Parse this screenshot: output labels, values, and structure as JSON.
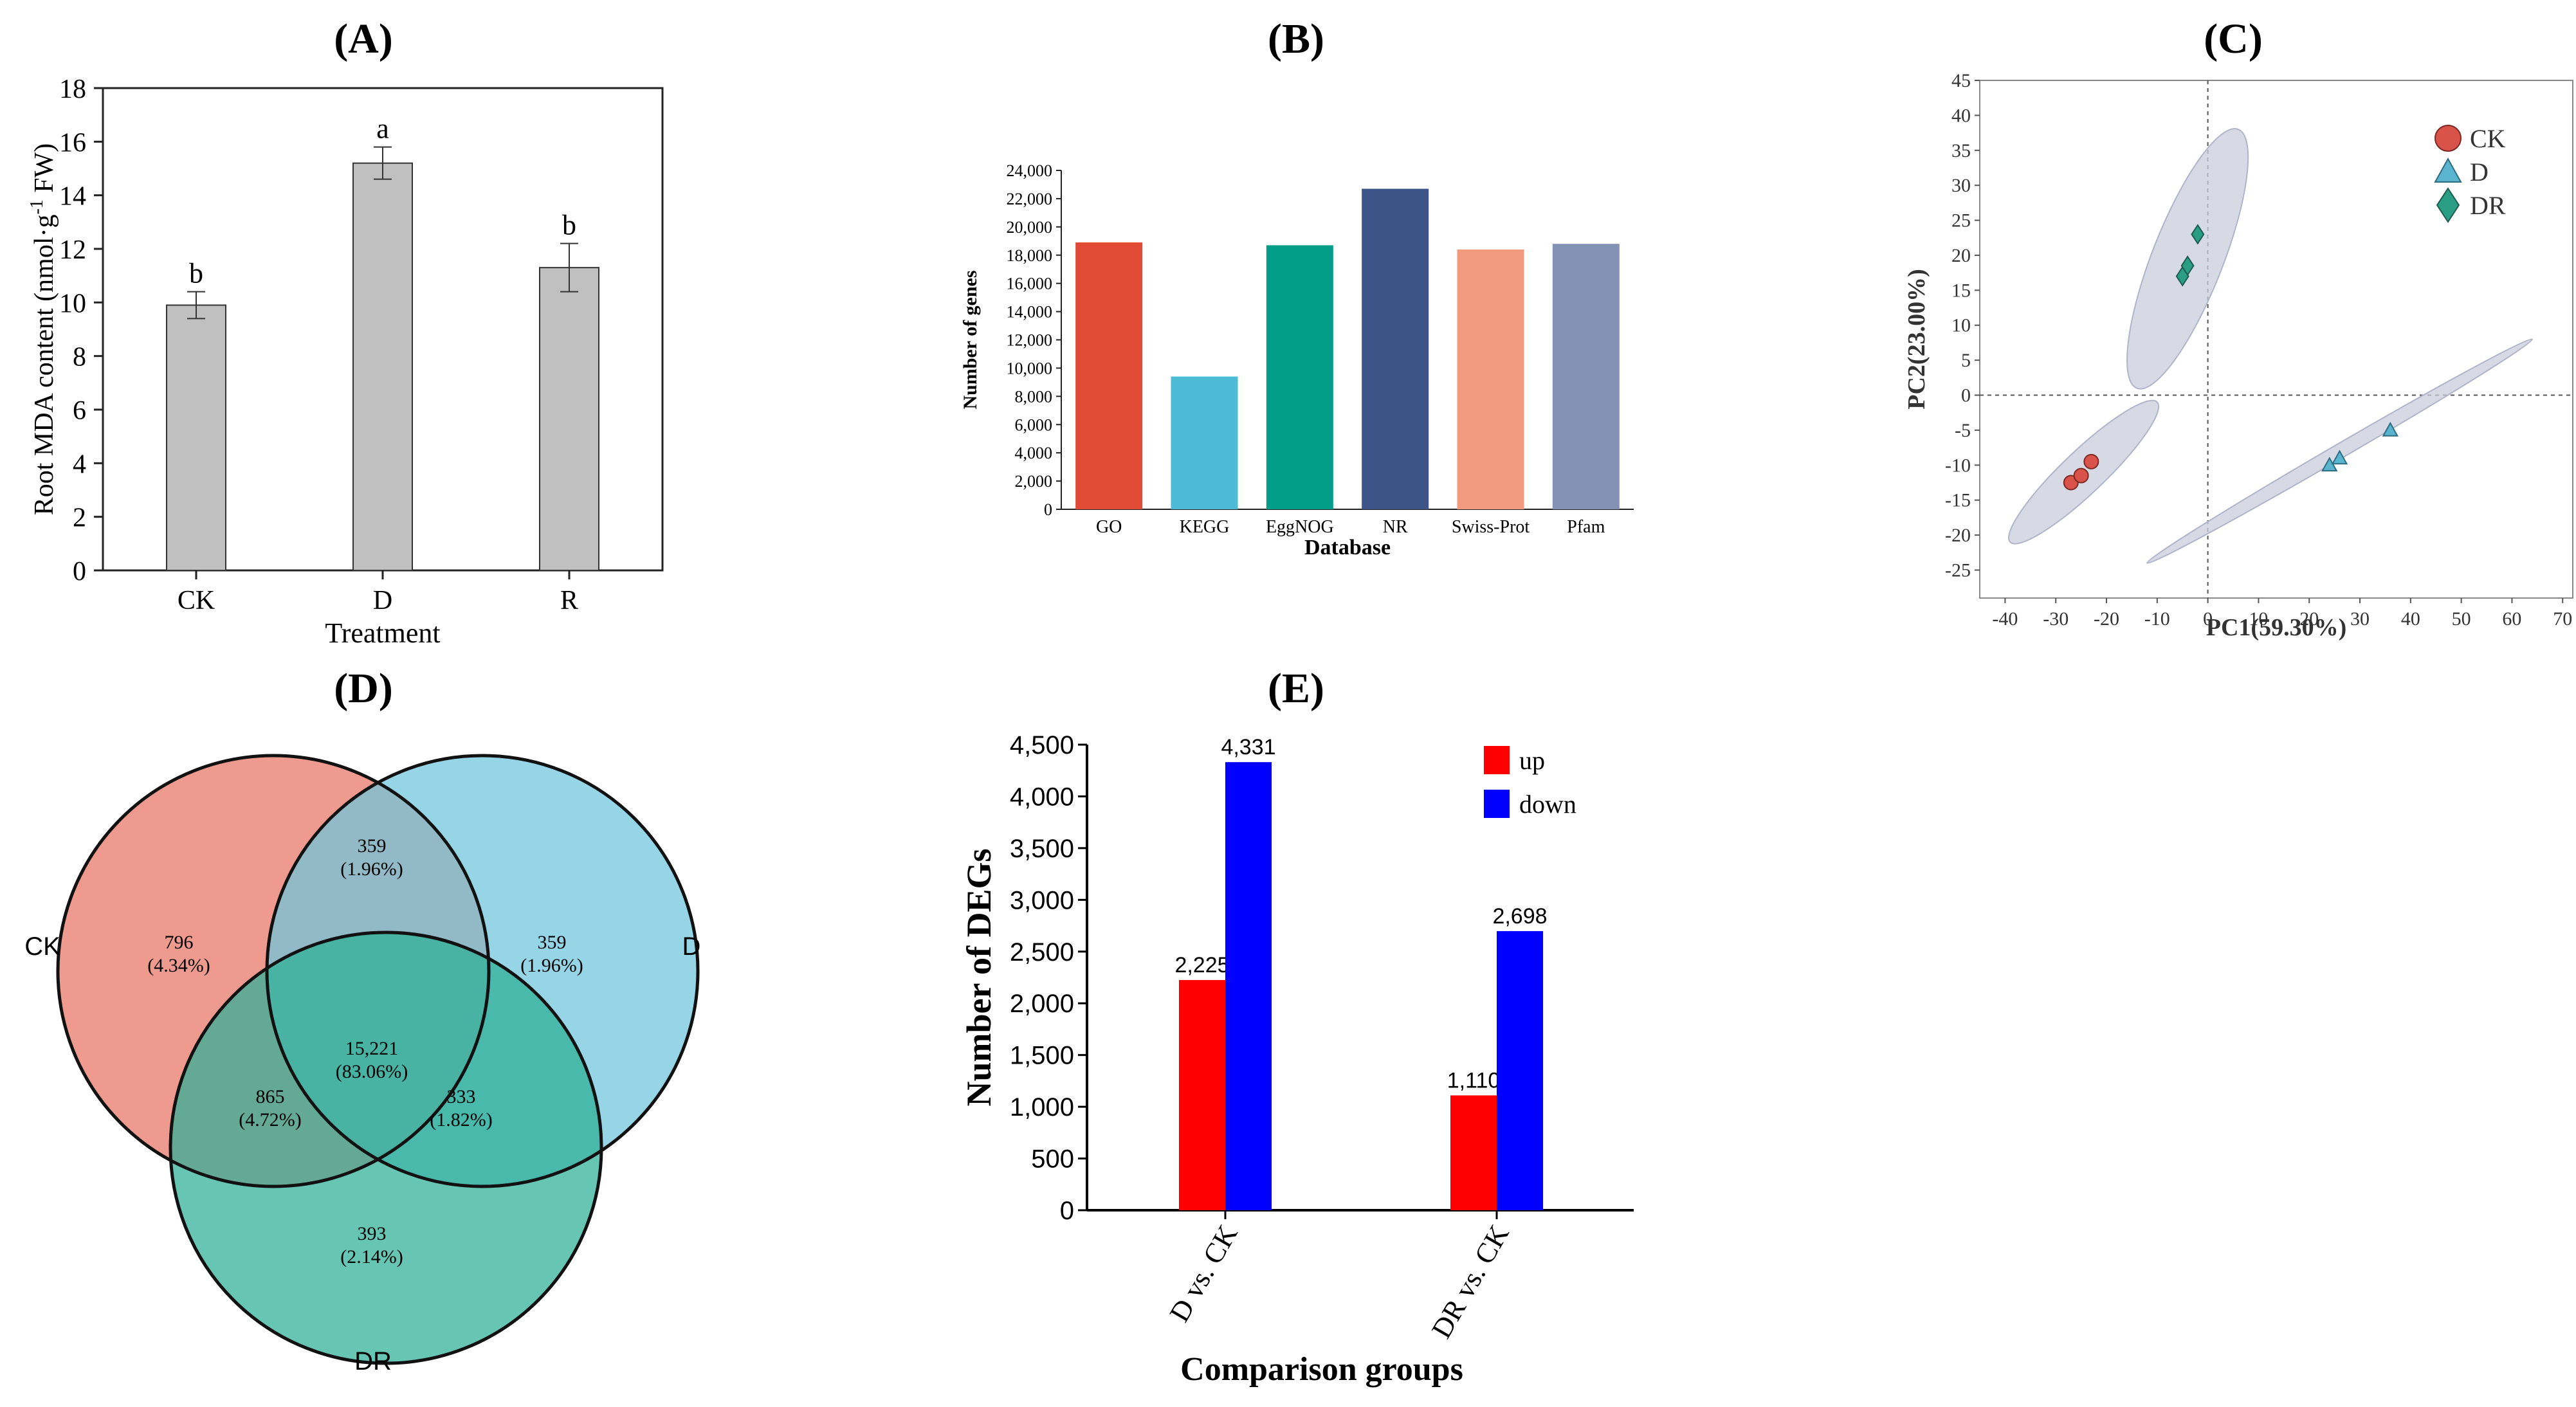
{
  "panels": {
    "A": "(A)",
    "B": "(B)",
    "C": "(C)",
    "D": "(D)",
    "E": "(E)"
  },
  "chart_data": [
    {
      "id": "A",
      "type": "bar",
      "categories": [
        "CK",
        "D",
        "R"
      ],
      "values": [
        9.9,
        15.2,
        11.3
      ],
      "errors": [
        0.5,
        0.6,
        0.9
      ],
      "letters": [
        "b",
        "a",
        "b"
      ],
      "xlabel": "Treatment",
      "ylabel_prefix": "Root MDA content (nmol·g",
      "ylabel_sup": "-1",
      "ylabel_suffix": " FW)",
      "ylim": [
        0,
        18
      ],
      "yticks": [
        0,
        2,
        4,
        6,
        8,
        10,
        12,
        14,
        16,
        18
      ],
      "colors": {
        "bar": "#c0c0c0",
        "edge": "#333333"
      }
    },
    {
      "id": "B",
      "type": "bar",
      "categories": [
        "GO",
        "KEGG",
        "EggNOG",
        "NR",
        "Swiss-Prot",
        "Pfam"
      ],
      "values": [
        18900,
        9400,
        18700,
        22700,
        18400,
        18800
      ],
      "xlabel": "Database",
      "ylabel": "Number of genes",
      "ylim": [
        0,
        24000
      ],
      "yticks": [
        0,
        2000,
        4000,
        6000,
        8000,
        10000,
        12000,
        14000,
        16000,
        18000,
        20000,
        22000,
        24000
      ],
      "ytick_labels": [
        "0",
        "2,000",
        "4,000",
        "6,000",
        "8,000",
        "10,000",
        "12,000",
        "14,000",
        "16,000",
        "18,000",
        "20,000",
        "22,000",
        "24,000"
      ],
      "colors": [
        "#e14b35",
        "#4dbad6",
        "#029e88",
        "#3d5488",
        "#f29a7f",
        "#8492b5"
      ]
    },
    {
      "id": "C",
      "type": "scatter",
      "xlabel": "PC1(59.30%)",
      "ylabel": "PC2(23.00%)",
      "xlim": [
        -45,
        72
      ],
      "ylim": [
        -29,
        45
      ],
      "xticks": [
        -40,
        -30,
        -20,
        -10,
        0,
        10,
        20,
        30,
        40,
        50,
        60,
        70
      ],
      "yticks": [
        -25,
        -20,
        -15,
        -10,
        -5,
        0,
        5,
        10,
        15,
        20,
        25,
        30,
        35,
        40,
        45
      ],
      "series": [
        {
          "name": "CK",
          "marker": "circle",
          "color": "#d9534a",
          "points": [
            [
              -27,
              -12.5
            ],
            [
              -25,
              -11.5
            ],
            [
              -23,
              -9.5
            ]
          ]
        },
        {
          "name": "D",
          "marker": "triangle",
          "color": "#5ab4cf",
          "points": [
            [
              24,
              -10
            ],
            [
              26,
              -9
            ],
            [
              36,
              -5
            ]
          ]
        },
        {
          "name": "DR",
          "marker": "diamond",
          "color": "#2a9e85",
          "points": [
            [
              -5,
              17
            ],
            [
              -4,
              18.5
            ],
            [
              -2,
              23
            ]
          ]
        }
      ],
      "ellipses": [
        {
          "x1": -39,
          "y1": -21,
          "x2": -10,
          "y2": -1,
          "w": 3
        },
        {
          "x1": -14,
          "y1": 1,
          "x2": 6,
          "y2": 38,
          "w": 5
        },
        {
          "x1": -12,
          "y1": -24,
          "x2": 64,
          "y2": 8,
          "w": 1
        }
      ]
    },
    {
      "id": "D",
      "type": "venn",
      "sets": [
        {
          "name": "CK",
          "color": "#e97363"
        },
        {
          "name": "D",
          "color": "#6cc5dd"
        },
        {
          "name": "DR",
          "color": "#2dae96"
        }
      ],
      "regions": [
        {
          "key": "CK",
          "count": "796",
          "pct": "(4.34%)"
        },
        {
          "key": "CK&D",
          "count": "359",
          "pct": "(1.96%)"
        },
        {
          "key": "D",
          "count": "359",
          "pct": "(1.96%)"
        },
        {
          "key": "CK&D&DR",
          "count": "15,221",
          "pct": "(83.06%)"
        },
        {
          "key": "CK&DR",
          "count": "865",
          "pct": "(4.72%)"
        },
        {
          "key": "D&DR",
          "count": "333",
          "pct": "(1.82%)"
        },
        {
          "key": "DR",
          "count": "393",
          "pct": "(2.14%)"
        }
      ]
    },
    {
      "id": "E",
      "type": "bar",
      "categories": [
        "D vs. CK",
        "DR vs. CK"
      ],
      "series": [
        {
          "name": "up",
          "color": "#ff0000",
          "values": [
            2225,
            1110
          ],
          "labels": [
            "2,225",
            "1,110"
          ]
        },
        {
          "name": "down",
          "color": "#0000ff",
          "values": [
            4331,
            2698
          ],
          "labels": [
            "4,331",
            "2,698"
          ]
        }
      ],
      "xlabel": "Comparison groups",
      "ylabel": "Number of DEGs",
      "ylim": [
        0,
        4500
      ],
      "yticks": [
        0,
        500,
        1000,
        1500,
        2000,
        2500,
        3000,
        3500,
        4000,
        4500
      ],
      "ytick_labels": [
        "0",
        "500",
        "1,000",
        "1,500",
        "2,000",
        "2,500",
        "3,000",
        "3,500",
        "4,000",
        "4,500"
      ]
    }
  ]
}
